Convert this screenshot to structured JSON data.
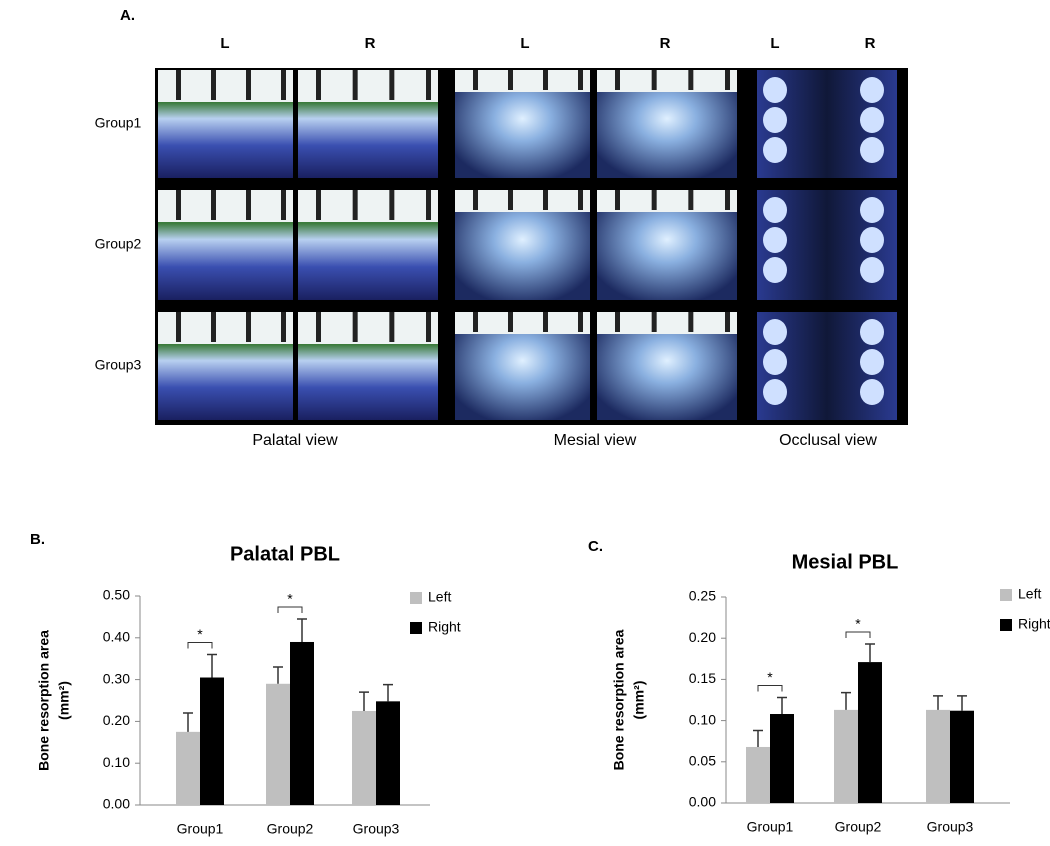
{
  "panel_a": {
    "label": "A.",
    "columns": [
      "L",
      "R",
      "L",
      "R",
      "L",
      "R"
    ],
    "rows": [
      "Group1",
      "Group2",
      "Group3"
    ],
    "views": [
      "Palatal view",
      "Mesial view",
      "Occlusal view"
    ]
  },
  "chart_data": [
    {
      "type": "bar",
      "panel": "B.",
      "title": "Palatal PBL",
      "y_label": "Bone resorption area",
      "y_unit": "(mm²)",
      "categories": [
        "Group1",
        "Group2",
        "Group3"
      ],
      "series": [
        {
          "name": "Left",
          "color": "#bfbfbf",
          "values": [
            0.175,
            0.29,
            0.225
          ],
          "errors": [
            0.045,
            0.04,
            0.045
          ]
        },
        {
          "name": "Right",
          "color": "#000000",
          "values": [
            0.305,
            0.39,
            0.248
          ],
          "errors": [
            0.055,
            0.055,
            0.04
          ]
        }
      ],
      "ylim": [
        0,
        0.5
      ],
      "yticks": [
        {
          "value": 0,
          "label": "0.00"
        },
        {
          "value": 0.1,
          "label": "0.10"
        },
        {
          "value": 0.2,
          "label": "0.20"
        },
        {
          "value": 0.3,
          "label": "0.30"
        },
        {
          "value": 0.4,
          "label": "0.40"
        },
        {
          "value": 0.5,
          "label": "0.50"
        }
      ],
      "annotations": [
        {
          "text": "*",
          "category": "Group1"
        },
        {
          "text": "*",
          "category": "Group2"
        }
      ]
    },
    {
      "type": "bar",
      "panel": "C.",
      "title": "Mesial PBL",
      "y_label": "Bone resorption area",
      "y_unit": "(mm²)",
      "categories": [
        "Group1",
        "Group2",
        "Group3"
      ],
      "series": [
        {
          "name": "Left",
          "color": "#bfbfbf",
          "values": [
            0.068,
            0.113,
            0.113
          ],
          "errors": [
            0.02,
            0.021,
            0.017
          ]
        },
        {
          "name": "Right",
          "color": "#000000",
          "values": [
            0.108,
            0.171,
            0.112
          ],
          "errors": [
            0.02,
            0.022,
            0.018
          ]
        }
      ],
      "ylim": [
        0,
        0.25
      ],
      "yticks": [
        {
          "value": 0,
          "label": "0.00"
        },
        {
          "value": 0.05,
          "label": "0.05"
        },
        {
          "value": 0.1,
          "label": "0.10"
        },
        {
          "value": 0.15,
          "label": "0.15"
        },
        {
          "value": 0.2,
          "label": "0.20"
        },
        {
          "value": 0.25,
          "label": "0.25"
        }
      ],
      "annotations": [
        {
          "text": "*",
          "category": "Group1"
        },
        {
          "text": "*",
          "category": "Group2"
        }
      ]
    }
  ]
}
